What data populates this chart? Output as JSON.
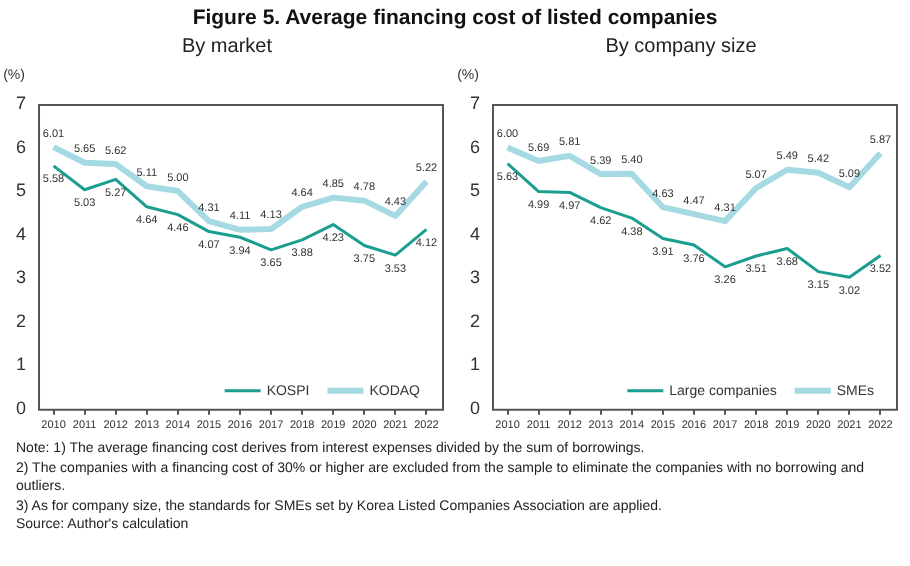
{
  "chart_data": [
    {
      "type": "line",
      "title": "Figure 5. Average financing cost of listed companies",
      "subtitle": "By market",
      "ylabel": "(%)",
      "categories": [
        "2010",
        "2011",
        "2012",
        "2013",
        "2014",
        "2015",
        "2016",
        "2017",
        "2018",
        "2019",
        "2020",
        "2021",
        "2022"
      ],
      "series": [
        {
          "name": "KOSPI",
          "color": "#1a9e8f",
          "values": [
            5.58,
            5.03,
            5.27,
            4.64,
            4.46,
            4.07,
            3.94,
            3.65,
            3.88,
            4.23,
            3.75,
            3.53,
            4.12
          ],
          "value_labels": [
            "5.58",
            "5.03",
            "5.27",
            "4.64",
            "4.46",
            "4.07",
            "3.94",
            "3.65",
            "3.88",
            "4.23",
            "3.75",
            "3.53",
            "4.12"
          ]
        },
        {
          "name": "KODAQ",
          "color": "#a6dae3",
          "values": [
            6.01,
            5.65,
            5.62,
            5.11,
            5.0,
            4.31,
            4.11,
            4.13,
            4.64,
            4.85,
            4.78,
            4.43,
            5.22
          ],
          "value_labels": [
            "6.01",
            "5.65",
            "5.62",
            "5.11",
            "5.00",
            "4.31",
            "4.11",
            "4.13",
            "4.64",
            "4.85",
            "4.78",
            "4.43",
            "5.22"
          ]
        }
      ],
      "ylim": [
        0,
        7
      ],
      "yticks": [
        0,
        1,
        2,
        3,
        4,
        5,
        6,
        7
      ],
      "grid": false,
      "legend": "bottom right",
      "marker": "none",
      "annotations": [
        "Note: 1) The average financing cost derives from interest expenses divided by the sum of borrowings.",
        "2) The companies with a financing cost of 30% or higher are excluded from the sample to eliminate the companies with no borrowing and outliers.",
        "3) As for company size, the standards for SMEs set by Korea Listed Companies Association are applied.",
        "Source: Author's calculation"
      ]
    },
    {
      "type": "line",
      "title": "By company size",
      "ylabel": "(%)",
      "categories": [
        "2010",
        "2011",
        "2012",
        "2013",
        "2014",
        "2015",
        "2016",
        "2017",
        "2018",
        "2019",
        "2020",
        "2021",
        "2022"
      ],
      "series": [
        {
          "name": "Large companies",
          "color": "#1a9e8f",
          "values": [
            5.63,
            4.99,
            4.97,
            4.62,
            4.38,
            3.91,
            3.76,
            3.26,
            3.51,
            3.68,
            3.15,
            3.02,
            3.52
          ],
          "value_labels": [
            "5.63",
            "4.99",
            "4.97",
            "4.62",
            "4.38",
            "3.91",
            "3.76",
            "3.26",
            "3.51",
            "3.68",
            "3.15",
            "3.02",
            "3.52"
          ]
        },
        {
          "name": "SMEs",
          "color": "#a6dae3",
          "values": [
            6.0,
            5.69,
            5.81,
            5.39,
            5.4,
            4.63,
            4.47,
            4.31,
            5.07,
            5.49,
            5.42,
            5.09,
            5.87
          ],
          "value_labels": [
            "6.00",
            "5.69",
            "5.81",
            "5.39",
            "5.40",
            "4.63",
            "4.47",
            "4.31",
            "5.07",
            "5.49",
            "5.42",
            "5.09",
            "5.87"
          ]
        }
      ],
      "ylim": [
        0,
        7
      ],
      "yticks": [
        0,
        1,
        2,
        3,
        4,
        5,
        6,
        7
      ],
      "grid": false,
      "legend": "bottom right",
      "marker": "none"
    }
  ]
}
